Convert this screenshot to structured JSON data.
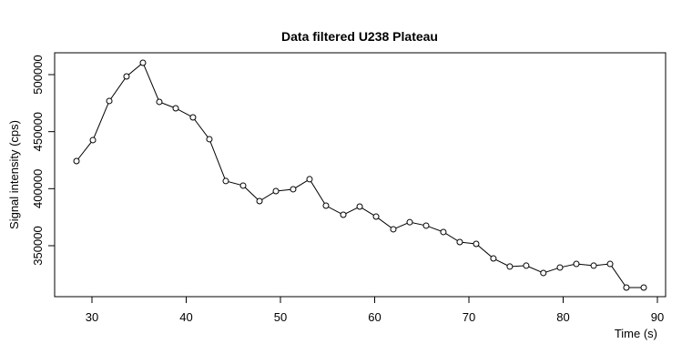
{
  "chart_data": {
    "type": "line",
    "title": "Data filtered U238 Plateau",
    "x_label": "Time (s)",
    "y_label": "Signal intensity (cps)",
    "x": [
      28.36,
      30.1,
      31.84,
      33.67,
      35.41,
      37.15,
      38.89,
      40.72,
      42.46,
      44.2,
      46.04,
      47.78,
      49.52,
      51.35,
      53.09,
      54.83,
      56.67,
      58.41,
      60.15,
      61.98,
      63.72,
      65.46,
      67.29,
      69.03,
      70.77,
      72.6,
      74.34,
      76.08,
      77.9,
      79.66,
      81.4,
      83.24,
      84.98,
      86.71,
      88.55
    ],
    "series": [
      {
        "color": "#000000",
        "values": [
          424200,
          442600,
          476900,
          498400,
          510400,
          476100,
          470500,
          462500,
          443400,
          406700,
          402700,
          389100,
          397900,
          399500,
          408300,
          385100,
          377100,
          384300,
          375500,
          364400,
          370600,
          367600,
          362000,
          353200,
          351600,
          338800,
          331700,
          332500,
          326100,
          330900,
          334000,
          332500,
          334000,
          313300,
          313300
        ]
      }
    ],
    "xlim": [
      26.04,
      90.87
    ],
    "ylim": [
      305320,
      519150
    ],
    "xticks": [
      30,
      40,
      50,
      60,
      70,
      80,
      90
    ],
    "yticks": [
      350000,
      400000,
      450000,
      500000
    ]
  }
}
